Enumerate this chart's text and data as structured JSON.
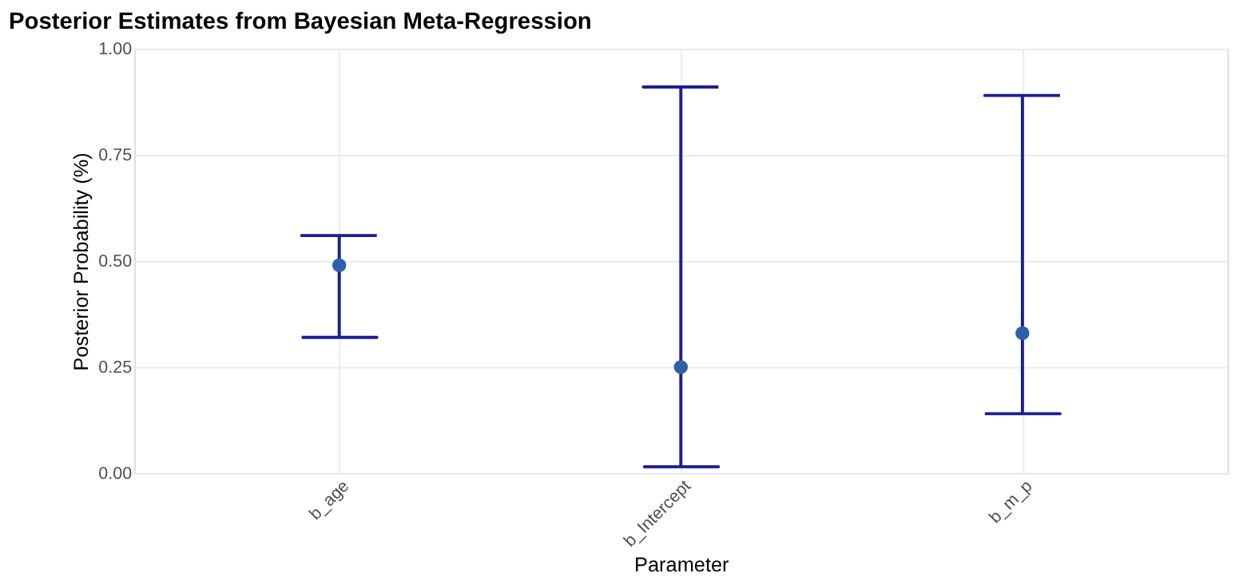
{
  "chart_data": {
    "type": "scatter",
    "title": "Posterior Estimates from Bayesian Meta-Regression",
    "xlabel": "Parameter",
    "ylabel": "Posterior Probability (%)",
    "categories": [
      "b_age",
      "b_Intercept",
      "b_m_p"
    ],
    "series": [
      {
        "color": "#2f5fa8",
        "values": [
          0.49,
          0.25,
          0.33
        ],
        "errors": [
          [
            0.32,
            0.56
          ],
          [
            0.015,
            0.91
          ],
          [
            0.14,
            0.89
          ]
        ]
      }
    ],
    "ylim": [
      0,
      1
    ],
    "yticks": [
      {
        "value": 0,
        "label": "0.00"
      },
      {
        "value": 0.25,
        "label": "0.25"
      },
      {
        "value": 0.5,
        "label": "0.50"
      },
      {
        "value": 0.75,
        "label": "0.75"
      },
      {
        "value": 1,
        "label": "1.00"
      }
    ],
    "grid": true,
    "marker": "circle"
  }
}
